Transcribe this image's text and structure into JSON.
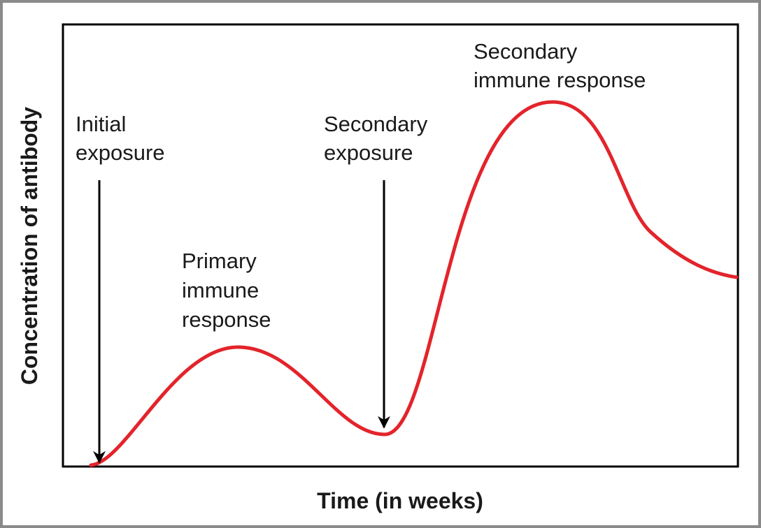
{
  "axes": {
    "x_label": "Time (in weeks)",
    "y_label": "Concentration of antibody"
  },
  "annotations": [
    {
      "lines": [
        "Initial",
        "exposure"
      ]
    },
    {
      "lines": [
        "Primary",
        "immune",
        "response"
      ]
    },
    {
      "lines": [
        "Secondary",
        "exposure"
      ]
    },
    {
      "lines": [
        "Secondary",
        "immune response"
      ]
    }
  ]
}
